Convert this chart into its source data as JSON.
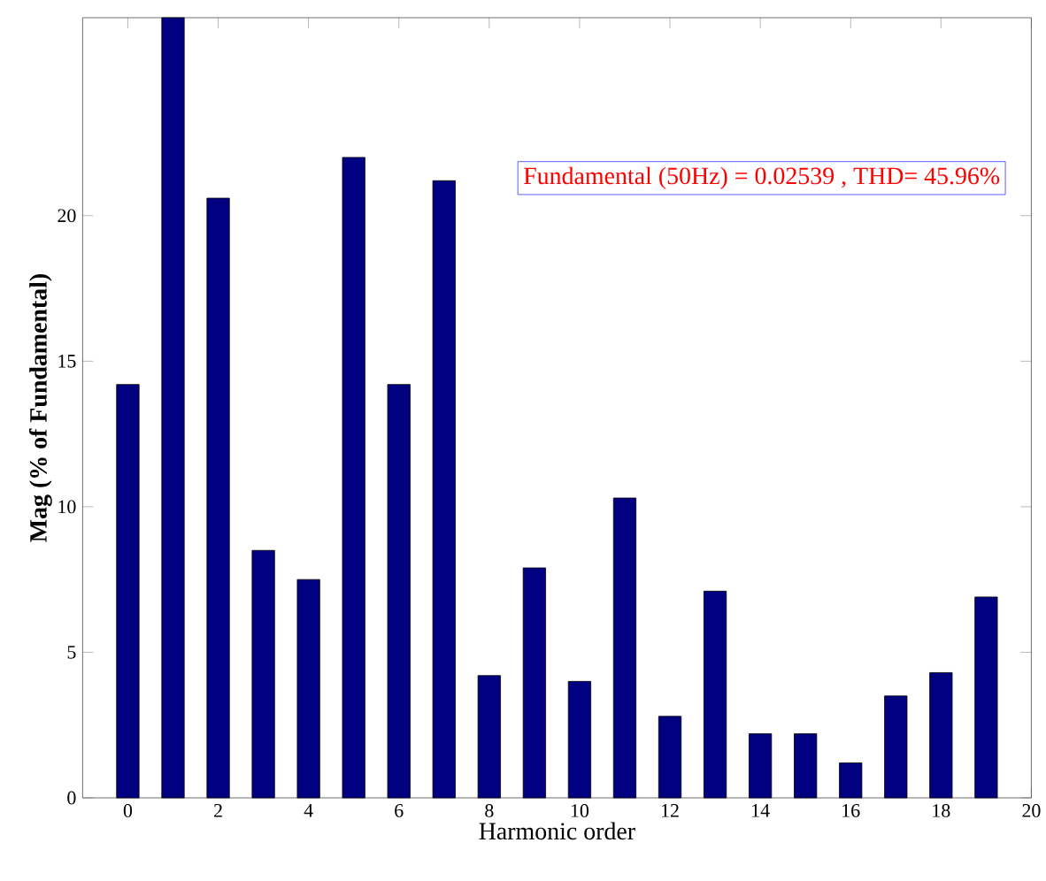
{
  "chart_data": {
    "type": "bar",
    "xlabel": "Harmonic order",
    "ylabel": "Mag (% of Fundamental)",
    "x": [
      0,
      1,
      2,
      3,
      4,
      5,
      6,
      7,
      8,
      9,
      10,
      11,
      12,
      13,
      14,
      15,
      16,
      17,
      18,
      19
    ],
    "values": [
      14.2,
      26.8,
      20.6,
      8.5,
      7.5,
      22.0,
      14.2,
      21.2,
      4.2,
      7.9,
      4.0,
      10.3,
      2.8,
      7.1,
      2.2,
      2.2,
      1.2,
      3.5,
      4.3,
      6.9
    ],
    "color": "#000080",
    "xlim": [
      -1,
      20
    ],
    "ylim": [
      0,
      26.8
    ],
    "xticks": [
      0,
      2,
      4,
      6,
      8,
      10,
      12,
      14,
      16,
      18,
      20
    ],
    "yticks": [
      0,
      5,
      10,
      15,
      20
    ],
    "annotations": [
      "Fundamental (50Hz) = 0.02539 , THD= 45.96%"
    ],
    "grid": false
  }
}
